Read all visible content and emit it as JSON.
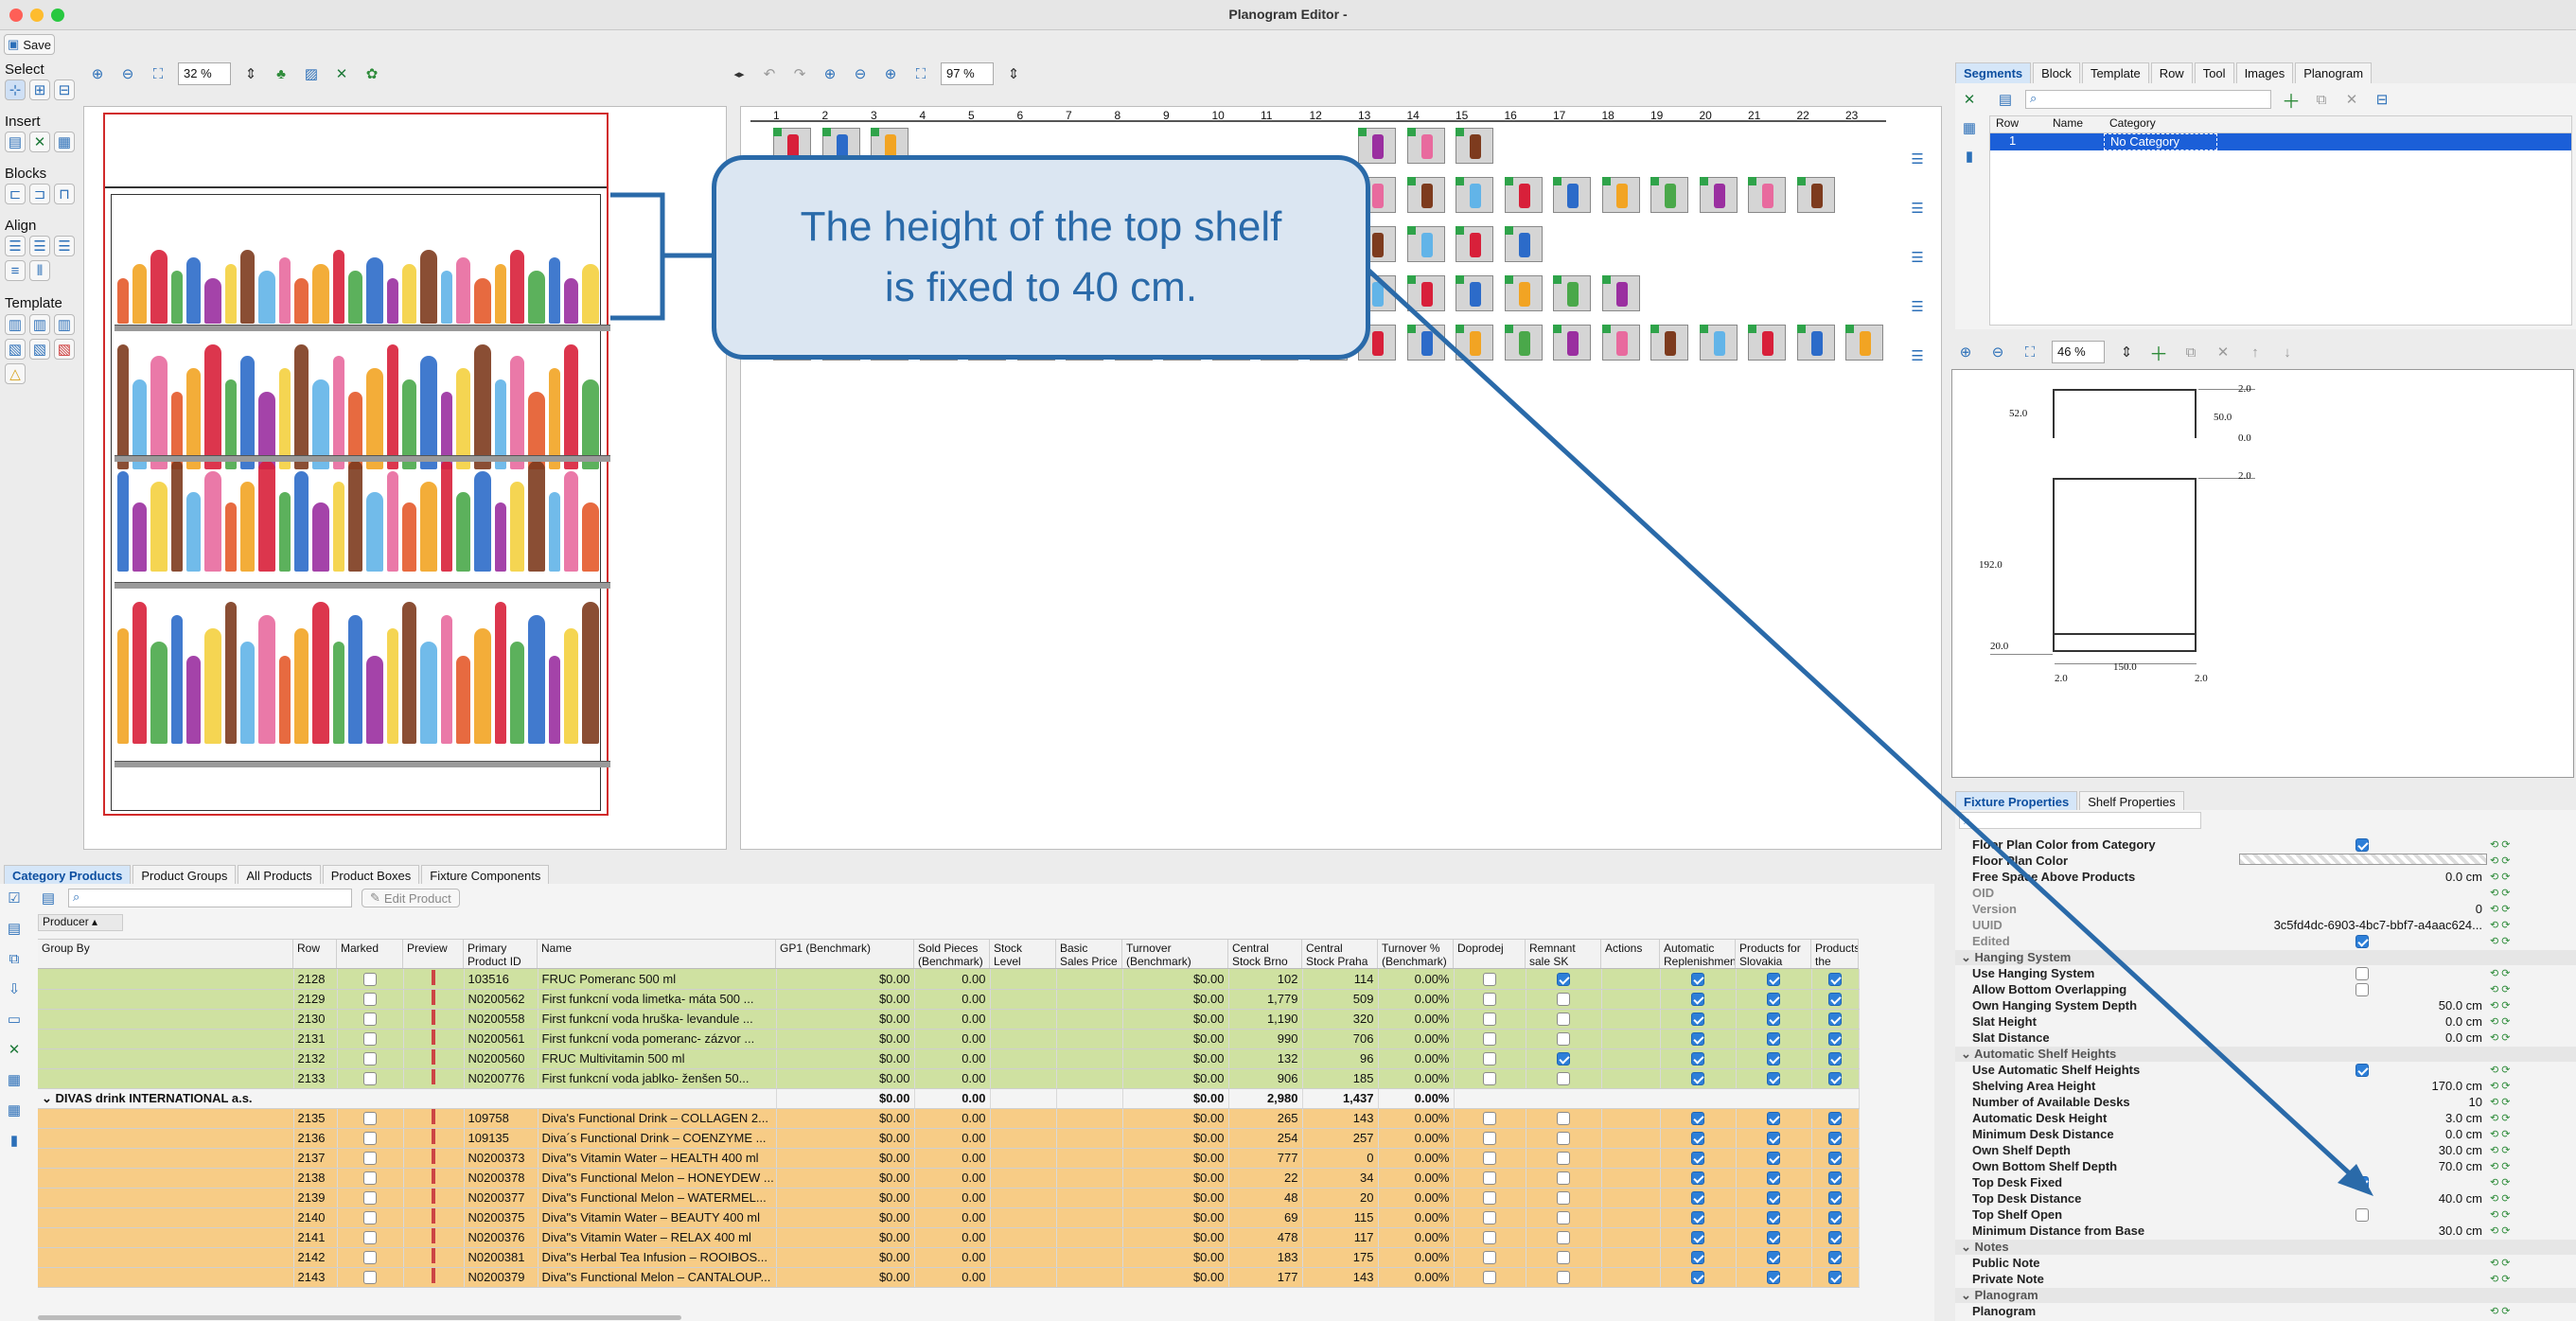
{
  "window": {
    "title": "Planogram Editor -"
  },
  "toolbar": {
    "save_label": "Save"
  },
  "left_tools": {
    "select_label": "Select",
    "insert_label": "Insert",
    "blocks_label": "Blocks",
    "align_label": "Align",
    "template_label": "Template"
  },
  "fixture_view": {
    "zoom": "32 %"
  },
  "planogram_view": {
    "zoom": "97 %",
    "columns": [
      "1",
      "2",
      "3",
      "4",
      "5",
      "6",
      "7",
      "8",
      "9",
      "10",
      "11",
      "12",
      "13",
      "14",
      "15",
      "16",
      "17",
      "18",
      "19",
      "20",
      "21",
      "22",
      "23"
    ]
  },
  "callout": {
    "line1": "The height of the top shelf",
    "line2": "is fixed to 40 cm."
  },
  "segments": {
    "tabs": [
      "Segments",
      "Block",
      "Template",
      "Row",
      "Tool",
      "Images",
      "Planogram"
    ],
    "columns": [
      "Row",
      "Name",
      "Category"
    ],
    "row": {
      "row": "1",
      "name": "",
      "category": "No Category"
    },
    "zoom": "46 %"
  },
  "dims": {
    "d52": "52.0",
    "d50": "50.0",
    "d2a": "2.0",
    "d0": "0.0",
    "d2b": "2.0",
    "d192": "192.0",
    "d20": "20.0",
    "d2c": "2.0",
    "d150": "150.0",
    "d2d": "2.0"
  },
  "properties": {
    "tabs": [
      "Fixture Properties",
      "Shelf Properties"
    ],
    "rows": [
      {
        "name": "Floor Plan Color from Category",
        "value": "",
        "check": "on"
      },
      {
        "name": "Floor Plan Color",
        "value": "",
        "check": "swatch"
      },
      {
        "name": "Free Space Above Products",
        "value": "0.0 cm"
      },
      {
        "name": "OID",
        "value": "",
        "muted": true
      },
      {
        "name": "Version",
        "value": "0",
        "muted": true
      },
      {
        "name": "UUID",
        "value": "3c5fd4dc-6903-4bc7-bbf7-a4aac624...",
        "muted": true
      },
      {
        "name": "Edited",
        "value": "",
        "check": "on",
        "muted": true
      },
      {
        "group": "Hanging System"
      },
      {
        "name": "Use Hanging System",
        "value": "",
        "check": "off"
      },
      {
        "name": "Allow Bottom Overlapping",
        "value": "",
        "check": "off"
      },
      {
        "name": "Own Hanging System Depth",
        "value": "50.0 cm"
      },
      {
        "name": "Slat Height",
        "value": "0.0 cm"
      },
      {
        "name": "Slat Distance",
        "value": "0.0 cm"
      },
      {
        "group": "Automatic Shelf Heights"
      },
      {
        "name": "Use Automatic Shelf Heights",
        "value": "",
        "check": "on"
      },
      {
        "name": "Shelving Area Height",
        "value": "170.0 cm"
      },
      {
        "name": "Number of Available Desks",
        "value": "10"
      },
      {
        "name": "Automatic Desk Height",
        "value": "3.0 cm"
      },
      {
        "name": "Minimum Desk Distance",
        "value": "0.0 cm"
      },
      {
        "name": "Own Shelf Depth",
        "value": "30.0 cm"
      },
      {
        "name": "Own Bottom Shelf Depth",
        "value": "70.0 cm"
      },
      {
        "name": "Top Desk Fixed",
        "value": "",
        "check": "on"
      },
      {
        "name": "Top Desk Distance",
        "value": "40.0 cm"
      },
      {
        "name": "Top Shelf Open",
        "value": "",
        "check": "off"
      },
      {
        "name": "Minimum Distance from Base",
        "value": "30.0 cm"
      },
      {
        "group": "Notes"
      },
      {
        "name": "Public Note",
        "value": ""
      },
      {
        "name": "Private Note",
        "value": ""
      },
      {
        "group": "Planogram"
      },
      {
        "name": "Planogram",
        "value": ""
      }
    ]
  },
  "products": {
    "tabs": [
      "Category Products",
      "Product Groups",
      "All Products",
      "Product Boxes",
      "Fixture Components"
    ],
    "edit_label": "Edit Product",
    "group_by": "Producer",
    "columns": [
      "Group By",
      "Row",
      "Marked",
      "Preview",
      "Primary Product ID",
      "Name",
      "GP1 (Benchmark)",
      "Sold Pieces (Benchmark)",
      "Stock Level",
      "Basic Sales Price",
      "Turnover (Benchmark)",
      "Central Stock Brno",
      "Central Stock Praha",
      "Turnover % (Benchmark)",
      "Doprodej",
      "Remnant sale SK",
      "Actions",
      "Automatic Replenishment (Default)",
      "Products for Slovakia",
      "Products the Czech Republic"
    ],
    "rows": [
      {
        "row": "2128",
        "marked": false,
        "id": "103516",
        "name": "FRUC Pomeranc 500 ml",
        "gp": "$0.00",
        "sold": "0.00",
        "turn": "$0.00",
        "brno": "102",
        "praha": "114",
        "pct": "0.00%",
        "rem": true,
        "color": "g"
      },
      {
        "row": "2129",
        "marked": false,
        "id": "N0200562",
        "name": "First funkcní voda limetka- máta 500 ...",
        "gp": "$0.00",
        "sold": "0.00",
        "turn": "$0.00",
        "brno": "1,779",
        "praha": "509",
        "pct": "0.00%",
        "rem": false,
        "color": "g"
      },
      {
        "row": "2130",
        "marked": false,
        "id": "N0200558",
        "name": "First funkcní voda hruška- levandule ...",
        "gp": "$0.00",
        "sold": "0.00",
        "turn": "$0.00",
        "brno": "1,190",
        "praha": "320",
        "pct": "0.00%",
        "rem": false,
        "color": "g"
      },
      {
        "row": "2131",
        "marked": false,
        "id": "N0200561",
        "name": "First funkcní voda pomeranc- zázvor ...",
        "gp": "$0.00",
        "sold": "0.00",
        "turn": "$0.00",
        "brno": "990",
        "praha": "706",
        "pct": "0.00%",
        "rem": false,
        "color": "g"
      },
      {
        "row": "2132",
        "marked": false,
        "id": "N0200560",
        "name": "FRUC Multivitamin 500 ml",
        "gp": "$0.00",
        "sold": "0.00",
        "turn": "$0.00",
        "brno": "132",
        "praha": "96",
        "pct": "0.00%",
        "rem": true,
        "color": "g"
      },
      {
        "row": "2133",
        "marked": false,
        "id": "N0200776",
        "name": "First funkcní voda jablko- ženšen 50...",
        "gp": "$0.00",
        "sold": "0.00",
        "turn": "$0.00",
        "brno": "906",
        "praha": "185",
        "pct": "0.00%",
        "rem": false,
        "color": "g"
      }
    ],
    "group_row": {
      "name": "DIVAS drink INTERNATIONAL a.s.",
      "gp": "$0.00",
      "sold": "0.00",
      "turn": "$0.00",
      "brno": "2,980",
      "praha": "1,437",
      "pct": "0.00%"
    },
    "rows2": [
      {
        "row": "2135",
        "id": "109758",
        "name": "Diva's Functional Drink – COLLAGEN 2...",
        "gp": "$0.00",
        "sold": "0.00",
        "turn": "$0.00",
        "brno": "265",
        "praha": "143",
        "pct": "0.00%"
      },
      {
        "row": "2136",
        "id": "109135",
        "name": "Diva´s Functional Drink – COENZYME ...",
        "gp": "$0.00",
        "sold": "0.00",
        "turn": "$0.00",
        "brno": "254",
        "praha": "257",
        "pct": "0.00%"
      },
      {
        "row": "2137",
        "id": "N0200373",
        "name": "Diva\"s Vitamin Water – HEALTH 400 ml",
        "gp": "$0.00",
        "sold": "0.00",
        "turn": "$0.00",
        "brno": "777",
        "praha": "0",
        "pct": "0.00%"
      },
      {
        "row": "2138",
        "id": "N0200378",
        "name": "Diva\"s Functional Melon – HONEYDEW ...",
        "gp": "$0.00",
        "sold": "0.00",
        "turn": "$0.00",
        "brno": "22",
        "praha": "34",
        "pct": "0.00%"
      },
      {
        "row": "2139",
        "id": "N0200377",
        "name": "Diva\"s Functional Melon – WATERMEL...",
        "gp": "$0.00",
        "sold": "0.00",
        "turn": "$0.00",
        "brno": "48",
        "praha": "20",
        "pct": "0.00%"
      },
      {
        "row": "2140",
        "id": "N0200375",
        "name": "Diva\"s Vitamin Water – BEAUTY 400 ml",
        "gp": "$0.00",
        "sold": "0.00",
        "turn": "$0.00",
        "brno": "69",
        "praha": "115",
        "pct": "0.00%"
      },
      {
        "row": "2141",
        "id": "N0200376",
        "name": "Diva\"s Vitamin Water – RELAX 400 ml",
        "gp": "$0.00",
        "sold": "0.00",
        "turn": "$0.00",
        "brno": "478",
        "praha": "117",
        "pct": "0.00%"
      },
      {
        "row": "2142",
        "id": "N0200381",
        "name": "Diva\"s Herbal Tea Infusion – ROOIBOS...",
        "gp": "$0.00",
        "sold": "0.00",
        "turn": "$0.00",
        "brno": "183",
        "praha": "175",
        "pct": "0.00%"
      },
      {
        "row": "2143",
        "id": "N0200379",
        "name": "Diva\"s Functional Melon – CANTALOUP...",
        "gp": "$0.00",
        "sold": "0.00",
        "turn": "$0.00",
        "brno": "177",
        "praha": "143",
        "pct": "0.00%"
      }
    ]
  }
}
